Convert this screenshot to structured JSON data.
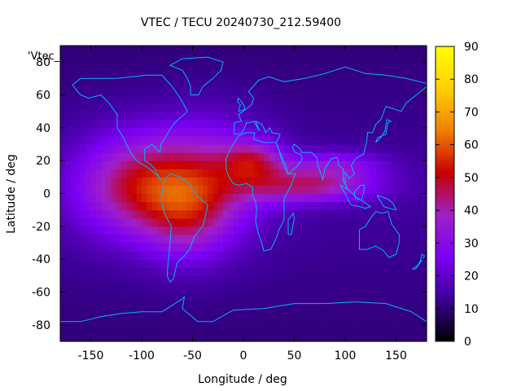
{
  "chart_data": {
    "type": "heatmap",
    "title": "VTEC / TECU 20240730_212.59400",
    "xlabel": "Longitude / deg",
    "ylabel": "Latitude / deg",
    "key_label": "'Vtec_",
    "xlim": [
      -180,
      180
    ],
    "ylim": [
      -90,
      90
    ],
    "xticks": [
      -150,
      -100,
      -50,
      0,
      50,
      100,
      150
    ],
    "yticks": [
      -80,
      -60,
      -40,
      -20,
      0,
      20,
      40,
      60,
      80
    ],
    "colorbar": {
      "range": [
        0,
        90
      ],
      "ticks": [
        0,
        10,
        20,
        30,
        40,
        50,
        60,
        70,
        80,
        90
      ]
    },
    "grid_step_deg": 5,
    "background_vtec": 14,
    "enhancement_blobs": [
      {
        "lon": -100,
        "lat": 5,
        "slon": 45,
        "slat": 22,
        "amp": 34
      },
      {
        "lon": -55,
        "lat": -15,
        "slon": 30,
        "slat": 20,
        "amp": 16
      },
      {
        "lon": 10,
        "lat": 20,
        "slon": 22,
        "slat": 9,
        "amp": 22
      },
      {
        "lon": 35,
        "lat": 5,
        "slon": 35,
        "slat": 8,
        "amp": 12
      },
      {
        "lon": 80,
        "lat": 5,
        "slon": 40,
        "slat": 7,
        "amp": 22
      },
      {
        "lon": 90,
        "lat": 18,
        "slon": 35,
        "slat": 6,
        "amp": 16
      },
      {
        "lon": -30,
        "lat": 10,
        "slon": 40,
        "slat": 25,
        "amp": 20
      }
    ],
    "colors": {
      "frame": "#000000",
      "coastline": "#00b4ff",
      "palette_stops": [
        "#000000",
        "#3c0096",
        "#7d00f5",
        "#a020c8",
        "#c80000",
        "#f08000",
        "#ffd000",
        "#ffff00"
      ]
    }
  }
}
